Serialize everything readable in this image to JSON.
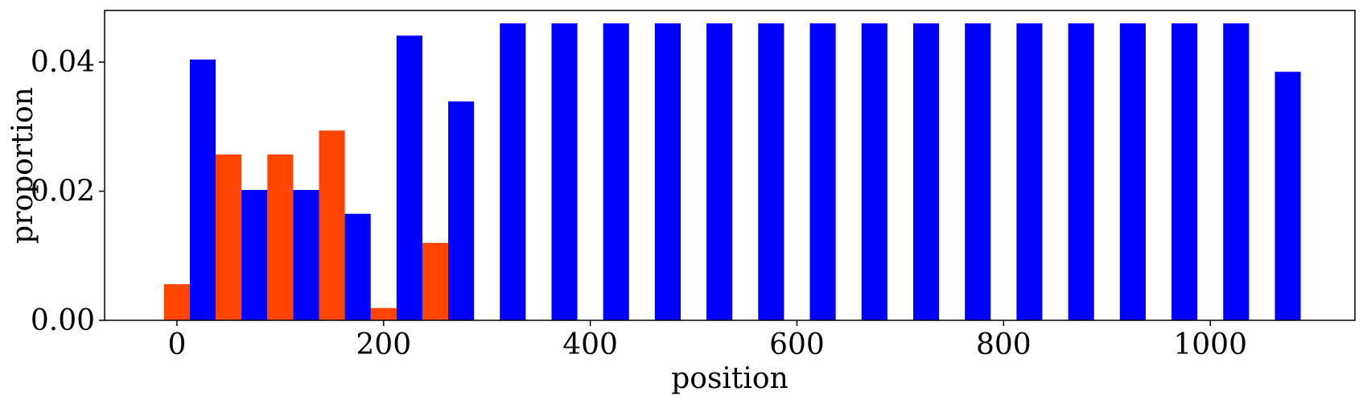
{
  "chart_data": {
    "type": "bar",
    "xlabel": "position",
    "ylabel": "proportion",
    "xlim": [
      -70,
      1140
    ],
    "ylim": [
      0,
      0.048
    ],
    "x_ticks": [
      0,
      200,
      400,
      600,
      800,
      1000
    ],
    "x_tick_labels": [
      "0",
      "200",
      "400",
      "600",
      "800",
      "1000"
    ],
    "y_ticks": [
      0.0,
      0.02,
      0.04
    ],
    "y_tick_labels": [
      "0.00",
      "0.02",
      "0.04"
    ],
    "bar_width": 25,
    "grid": false,
    "series": [
      {
        "color": "#ff4500",
        "points": [
          {
            "x": 0,
            "y": 0.0056
          },
          {
            "x": 50,
            "y": 0.0257
          },
          {
            "x": 100,
            "y": 0.0257
          },
          {
            "x": 150,
            "y": 0.0294
          },
          {
            "x": 200,
            "y": 0.0019
          },
          {
            "x": 250,
            "y": 0.012
          }
        ]
      },
      {
        "color": "#0000ff",
        "points": [
          {
            "x": 25,
            "y": 0.0404
          },
          {
            "x": 75,
            "y": 0.0202
          },
          {
            "x": 125,
            "y": 0.0202
          },
          {
            "x": 175,
            "y": 0.0165
          },
          {
            "x": 225,
            "y": 0.0441
          },
          {
            "x": 275,
            "y": 0.0339
          },
          {
            "x": 325,
            "y": 0.046
          },
          {
            "x": 375,
            "y": 0.046
          },
          {
            "x": 425,
            "y": 0.046
          },
          {
            "x": 475,
            "y": 0.046
          },
          {
            "x": 525,
            "y": 0.046
          },
          {
            "x": 575,
            "y": 0.046
          },
          {
            "x": 625,
            "y": 0.046
          },
          {
            "x": 675,
            "y": 0.046
          },
          {
            "x": 725,
            "y": 0.046
          },
          {
            "x": 775,
            "y": 0.046
          },
          {
            "x": 825,
            "y": 0.046
          },
          {
            "x": 875,
            "y": 0.046
          },
          {
            "x": 925,
            "y": 0.046
          },
          {
            "x": 975,
            "y": 0.046
          },
          {
            "x": 1025,
            "y": 0.046
          },
          {
            "x": 1075,
            "y": 0.0385
          }
        ]
      }
    ]
  }
}
